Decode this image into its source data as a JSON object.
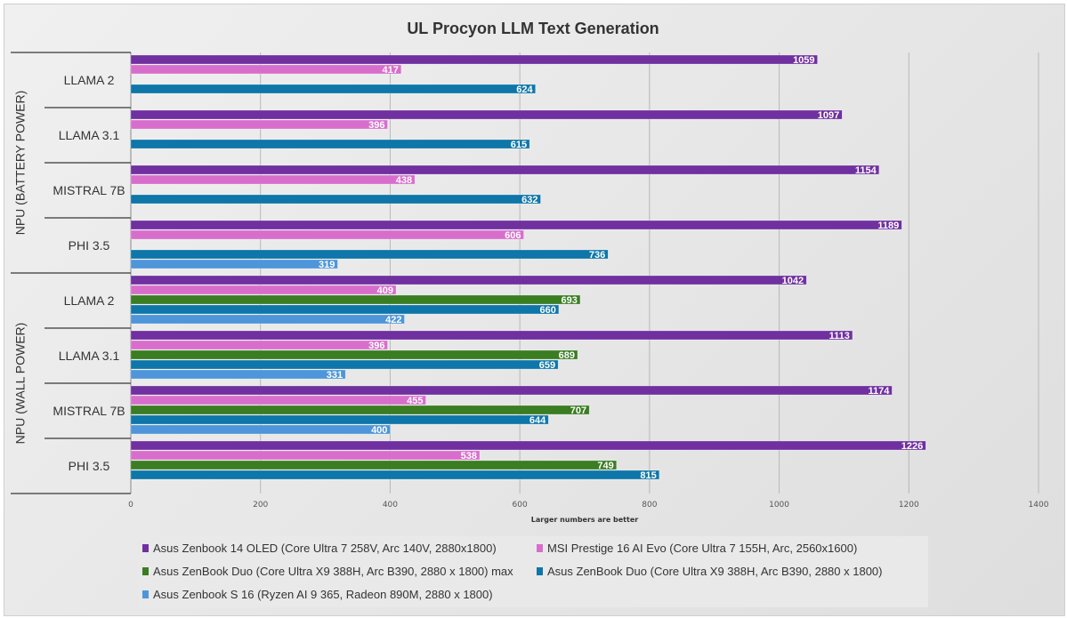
{
  "chart_data": {
    "type": "bar",
    "orientation": "horizontal",
    "title": "UL Procyon LLM Text Generation",
    "xlabel": "Larger numbers are better",
    "xlim": [
      0,
      1400
    ],
    "xticks": [
      "0",
      "200",
      "400",
      "600",
      "800",
      "1000",
      "1200",
      "1400"
    ],
    "grid": true,
    "legend_position": "bottom",
    "series": [
      {
        "name": "Asus Zenbook 14 OLED (Core Ultra 7 258V, Arc 140V, 2880x1800)",
        "color": "#7030a0"
      },
      {
        "name": "MSI Prestige 16 AI Evo (Core Ultra 7 155H, Arc, 2560x1600)",
        "color": "#d86ecc"
      },
      {
        "name": "Asus ZenBook Duo (Core Ultra X9 388H, Arc B390, 2880 x 1800) max",
        "color": "#3a7d22"
      },
      {
        "name": "Asus ZenBook Duo (Core Ultra X9 388H, Arc B390, 2880 x 1800)",
        "color": "#0e76a8"
      },
      {
        "name": "Asus Zenbook S 16 (Ryzen AI 9 365, Radeon 890M, 2880 x 1800)",
        "color": "#4e95d9"
      }
    ],
    "groups": [
      {
        "label": "NPU (BATTERY POWER)",
        "categories": [
          {
            "label": "LLAMA 2",
            "values": [
              1059,
              417,
              null,
              624,
              null
            ]
          },
          {
            "label": "LLAMA 3.1",
            "values": [
              1097,
              396,
              null,
              615,
              null
            ]
          },
          {
            "label": "MISTRAL 7B",
            "values": [
              1154,
              438,
              null,
              632,
              null
            ]
          },
          {
            "label": "PHI 3.5",
            "values": [
              1189,
              606,
              null,
              736,
              319
            ]
          }
        ]
      },
      {
        "label": "NPU (WALL POWER)",
        "categories": [
          {
            "label": "LLAMA 2",
            "values": [
              1042,
              409,
              693,
              660,
              422
            ]
          },
          {
            "label": "LLAMA 3.1",
            "values": [
              1113,
              396,
              689,
              659,
              331
            ]
          },
          {
            "label": "MISTRAL 7B",
            "values": [
              1174,
              455,
              707,
              644,
              400
            ]
          },
          {
            "label": "PHI 3.5",
            "values": [
              1226,
              538,
              749,
              815,
              null
            ]
          }
        ]
      }
    ]
  }
}
